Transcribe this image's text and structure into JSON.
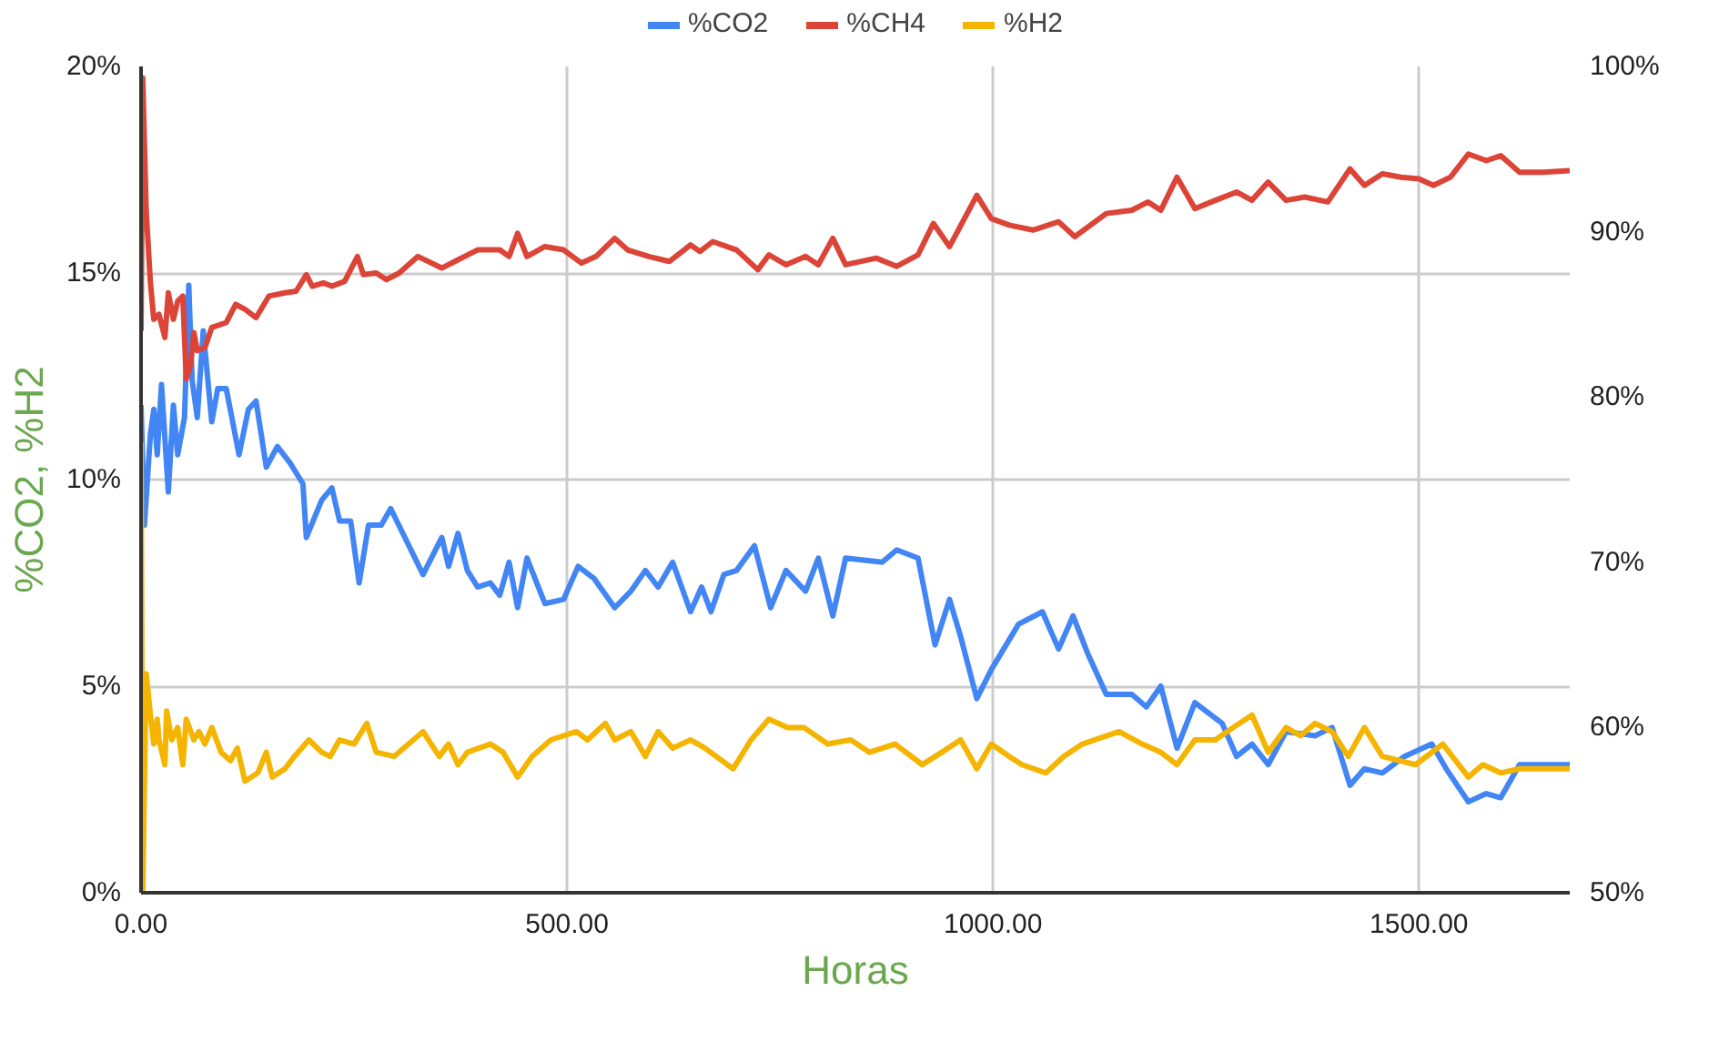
{
  "chart_data": {
    "type": "line",
    "xlabel": "Horas",
    "ylabel": "%CO2, %H2",
    "legend": "top",
    "grid": true,
    "marker": "none",
    "line_style": "solid",
    "xlim": [
      0,
      1677
    ],
    "xticks": [
      {
        "value": 0,
        "label": "0.00"
      },
      {
        "value": 500,
        "label": "500.00"
      },
      {
        "value": 1000,
        "label": "1000.00"
      },
      {
        "value": 1500,
        "label": "1500.00"
      }
    ],
    "ylim": [
      0,
      20
    ],
    "yticks": [
      {
        "value": 0,
        "label": "0%"
      },
      {
        "value": 5,
        "label": "5%"
      },
      {
        "value": 10,
        "label": "10%"
      },
      {
        "value": 15,
        "label": "15%"
      },
      {
        "value": 20,
        "label": "20%"
      }
    ],
    "y2lim": [
      50,
      100
    ],
    "y2ticks": [
      {
        "value": 50,
        "label": "50%"
      },
      {
        "value": 60,
        "label": "60%"
      },
      {
        "value": 70,
        "label": "70%"
      },
      {
        "value": 80,
        "label": "80%"
      },
      {
        "value": 90,
        "label": "90%"
      },
      {
        "value": 100,
        "label": "100%"
      }
    ],
    "series": [
      {
        "name": "%CO2",
        "color": "#4285f4",
        "x": [
          0,
          4,
          11,
          15,
          19,
          24,
          32,
          38,
          43,
          51,
          56,
          60,
          66,
          73,
          83,
          90,
          100,
          115,
          126,
          135,
          147,
          160,
          175,
          190,
          194,
          212,
          224,
          233,
          246,
          256,
          267,
          282,
          293,
          331,
          353,
          361,
          372,
          383,
          395,
          410,
          421,
          432,
          442,
          453,
          474,
          496,
          513,
          532,
          556,
          575,
          592,
          607,
          624,
          645,
          658,
          669,
          684,
          699,
          720,
          739,
          757,
          780,
          795,
          812,
          827,
          870,
          887,
          912,
          932,
          949,
          962,
          981,
          998,
          1030,
          1058,
          1077,
          1094,
          1111,
          1133,
          1163,
          1180,
          1197,
          1216,
          1237,
          1269,
          1286,
          1304,
          1323,
          1344,
          1378,
          1398,
          1419,
          1436,
          1457,
          1483,
          1515,
          1532,
          1558,
          1579,
          1596,
          1618,
          1646,
          1677
        ],
        "values": [
          11.8,
          8.9,
          11.1,
          11.7,
          10.6,
          12.3,
          9.7,
          11.8,
          10.6,
          11.5,
          14.7,
          12.4,
          11.5,
          13.6,
          11.4,
          12.2,
          12.2,
          10.6,
          11.7,
          11.9,
          10.3,
          10.8,
          10.4,
          9.9,
          8.6,
          9.5,
          9.8,
          9.0,
          9.0,
          7.5,
          8.9,
          8.9,
          9.3,
          7.7,
          8.6,
          7.9,
          8.7,
          7.8,
          7.4,
          7.5,
          7.2,
          8.0,
          6.9,
          8.1,
          7.0,
          7.1,
          7.9,
          7.6,
          6.9,
          7.3,
          7.8,
          7.4,
          8.0,
          6.8,
          7.4,
          6.8,
          7.7,
          7.8,
          8.4,
          6.9,
          7.8,
          7.3,
          8.1,
          6.7,
          8.1,
          8.0,
          8.3,
          8.1,
          6.0,
          7.1,
          6.2,
          4.7,
          5.4,
          6.5,
          6.8,
          5.9,
          6.7,
          5.8,
          4.8,
          4.8,
          4.5,
          5.0,
          3.5,
          4.6,
          4.1,
          3.3,
          3.6,
          3.1,
          3.9,
          3.8,
          4.0,
          2.6,
          3.0,
          2.9,
          3.3,
          3.6,
          3.0,
          2.2,
          2.4,
          2.3,
          3.1,
          3.1,
          3.1
        ]
      },
      {
        "name": "%CH4",
        "color": "#db4437",
        "axis": "y2",
        "x": [
          0,
          2,
          6,
          11,
          15,
          21,
          28,
          32,
          38,
          43,
          49,
          53,
          58,
          62,
          66,
          75,
          83,
          100,
          111,
          122,
          135,
          150,
          169,
          182,
          194,
          201,
          214,
          224,
          239,
          254,
          261,
          276,
          288,
          303,
          325,
          353,
          372,
          395,
          421,
          432,
          442,
          453,
          474,
          496,
          517,
          534,
          556,
          571,
          596,
          620,
          645,
          656,
          671,
          699,
          724,
          737,
          757,
          780,
          795,
          812,
          827,
          863,
          887,
          912,
          930,
          949,
          981,
          998,
          1019,
          1047,
          1077,
          1096,
          1133,
          1163,
          1182,
          1197,
          1216,
          1237,
          1261,
          1286,
          1304,
          1323,
          1344,
          1366,
          1393,
          1419,
          1436,
          1457,
          1479,
          1500,
          1517,
          1537,
          1558,
          1579,
          1596,
          1618,
          1646,
          1677
        ],
        "values": [
          84.0,
          99.3,
          91.3,
          86.9,
          84.7,
          85.0,
          83.6,
          86.3,
          84.7,
          85.8,
          86.1,
          81.1,
          81.9,
          83.9,
          82.8,
          83.0,
          84.2,
          84.5,
          85.6,
          85.3,
          84.8,
          86.1,
          86.3,
          86.4,
          87.4,
          86.7,
          86.9,
          86.7,
          87.0,
          88.5,
          87.4,
          87.5,
          87.1,
          87.5,
          88.5,
          87.8,
          88.3,
          88.9,
          88.9,
          88.5,
          89.9,
          88.5,
          89.1,
          88.9,
          88.1,
          88.5,
          89.6,
          88.9,
          88.5,
          88.2,
          89.2,
          88.8,
          89.4,
          88.9,
          87.7,
          88.6,
          88.0,
          88.5,
          88.0,
          89.6,
          88.0,
          88.4,
          87.9,
          88.6,
          90.5,
          89.1,
          92.2,
          90.8,
          90.4,
          90.1,
          90.6,
          89.7,
          91.1,
          91.3,
          91.8,
          91.3,
          93.3,
          91.4,
          91.9,
          92.4,
          91.9,
          93.0,
          91.9,
          92.1,
          91.8,
          93.8,
          92.8,
          93.5,
          93.3,
          93.2,
          92.8,
          93.3,
          94.7,
          94.3,
          94.6,
          93.6,
          93.6,
          93.7
        ]
      },
      {
        "name": "%H2",
        "color": "#f4b400",
        "x": [
          0,
          2,
          6,
          11,
          15,
          19,
          21,
          28,
          30,
          36,
          43,
          49,
          53,
          62,
          68,
          75,
          83,
          94,
          105,
          113,
          122,
          137,
          147,
          154,
          169,
          180,
          197,
          212,
          222,
          233,
          250,
          265,
          276,
          297,
          314,
          331,
          350,
          361,
          372,
          383,
          410,
          425,
          442,
          459,
          481,
          511,
          524,
          545,
          556,
          575,
          592,
          607,
          624,
          645,
          662,
          695,
          716,
          737,
          759,
          778,
          806,
          833,
          855,
          885,
          917,
          940,
          962,
          981,
          998,
          1019,
          1034,
          1062,
          1083,
          1105,
          1148,
          1175,
          1197,
          1216,
          1237,
          1261,
          1282,
          1304,
          1323,
          1344,
          1361,
          1378,
          1398,
          1417,
          1436,
          1457,
          1496,
          1528,
          1558,
          1575,
          1596,
          1618,
          1677
        ],
        "values": [
          10.9,
          0.0,
          5.3,
          4.3,
          3.6,
          4.2,
          3.7,
          3.1,
          4.4,
          3.7,
          4.0,
          3.1,
          4.2,
          3.7,
          3.9,
          3.6,
          4.0,
          3.4,
          3.2,
          3.5,
          2.7,
          2.9,
          3.4,
          2.8,
          3.0,
          3.3,
          3.7,
          3.4,
          3.3,
          3.7,
          3.6,
          4.1,
          3.4,
          3.3,
          3.6,
          3.9,
          3.3,
          3.6,
          3.1,
          3.4,
          3.6,
          3.4,
          2.8,
          3.3,
          3.7,
          3.9,
          3.7,
          4.1,
          3.7,
          3.9,
          3.3,
          3.9,
          3.5,
          3.7,
          3.5,
          3.0,
          3.7,
          4.2,
          4.0,
          4.0,
          3.6,
          3.7,
          3.4,
          3.6,
          3.1,
          3.4,
          3.7,
          3.0,
          3.6,
          3.3,
          3.1,
          2.9,
          3.3,
          3.6,
          3.9,
          3.6,
          3.4,
          3.1,
          3.7,
          3.7,
          4.0,
          4.3,
          3.4,
          4.0,
          3.8,
          4.1,
          3.9,
          3.3,
          4.0,
          3.3,
          3.1,
          3.6,
          2.8,
          3.1,
          2.9,
          3.0,
          3.0
        ]
      }
    ]
  }
}
